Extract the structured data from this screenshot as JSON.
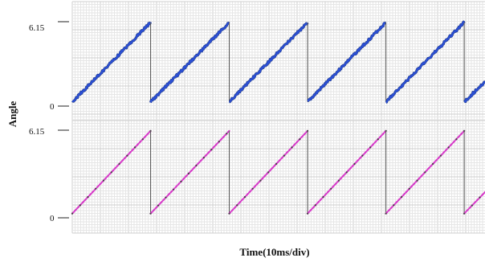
{
  "chart_data": [
    {
      "type": "line",
      "ylabel": "Angle",
      "xlabel": "Time(10ms/div)",
      "yticks": [
        "6.15",
        "0"
      ],
      "ylim": [
        0,
        6.15
      ],
      "grid": true,
      "x_unit": "ms",
      "xlim": [
        0,
        137
      ],
      "series": [
        {
          "color": "#2b4fd6",
          "style": "noisy-sawtooth",
          "x": [
            0,
            26.0,
            26.0,
            52.1,
            52.1,
            78.1,
            78.1,
            104.1,
            104.1,
            130.1,
            130.1,
            137
          ],
          "y": [
            0.3,
            6.1,
            0.3,
            6.1,
            0.3,
            6.1,
            0.3,
            6.1,
            0.3,
            6.1,
            0.3,
            1.8
          ]
        }
      ]
    },
    {
      "type": "line",
      "ylabel": "Angle",
      "xlabel": "Time(10ms/div)",
      "yticks": [
        "6.15",
        "0"
      ],
      "ylim": [
        0,
        6.15
      ],
      "grid": true,
      "x_unit": "ms",
      "xlim": [
        0,
        137
      ],
      "series": [
        {
          "color": "#d63ac8",
          "style": "dotted-sawtooth",
          "x": [
            0,
            26.0,
            26.0,
            52.1,
            52.1,
            78.1,
            78.1,
            104.1,
            104.1,
            130.1,
            130.1,
            137
          ],
          "y": [
            0.3,
            6.1,
            0.3,
            6.1,
            0.3,
            6.1,
            0.3,
            6.1,
            0.3,
            6.1,
            0.3,
            1.8
          ]
        }
      ]
    }
  ]
}
